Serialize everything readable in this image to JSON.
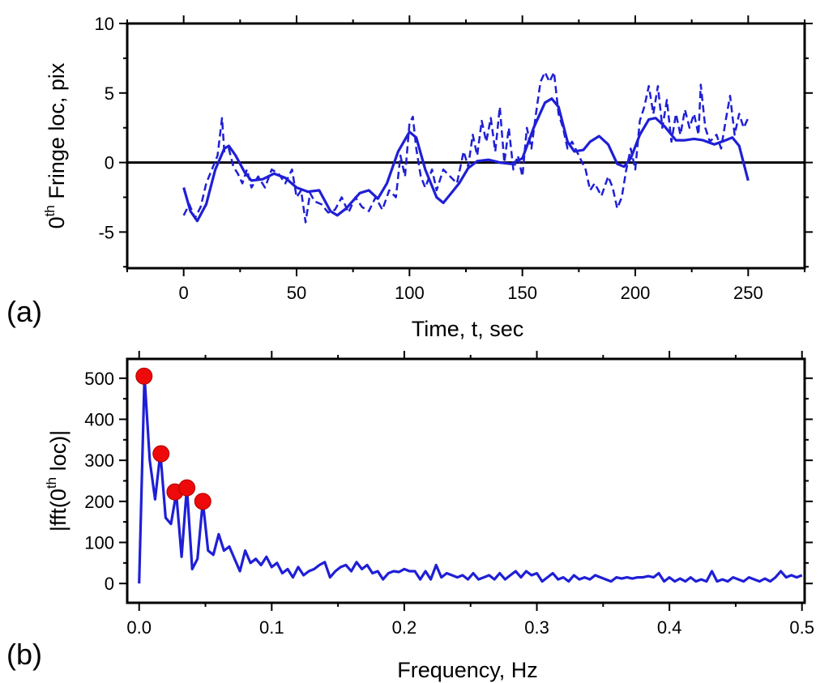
{
  "chart_data": [
    {
      "type": "line",
      "panel_label": "(a)",
      "xlabel": "Time, t, sec",
      "ylabel": [
        "0",
        "th",
        " Fringe loc, pix"
      ],
      "xlim": [
        -25,
        275
      ],
      "xticks": [
        0,
        50,
        100,
        150,
        200,
        250
      ],
      "ylim": [
        -7.6,
        10
      ],
      "yticks": [
        -5,
        0,
        5,
        10
      ],
      "hlines": [
        0
      ],
      "hline_color": "#000000",
      "series": [
        {
          "type": "line",
          "dashed": true,
          "color": "#1f1fd6",
          "x": [
            0,
            2.5,
            5,
            7.5,
            10,
            12.5,
            15,
            17,
            18,
            20,
            22,
            24,
            26,
            28,
            30,
            33,
            36,
            39,
            42,
            45,
            48,
            50,
            52,
            54,
            56,
            58,
            61,
            64,
            67,
            70,
            73,
            76,
            79,
            82,
            85,
            88,
            91,
            94,
            96,
            98,
            100,
            101.5,
            103,
            105,
            107,
            110,
            112,
            115,
            118,
            121,
            124,
            126,
            128,
            130,
            132,
            134,
            136,
            138,
            140,
            142,
            144,
            146,
            148,
            150,
            152,
            154,
            156,
            158,
            160,
            162,
            164,
            166,
            168,
            170,
            172,
            175,
            178,
            180,
            182,
            185,
            188,
            190,
            192,
            194,
            196,
            198,
            200,
            202,
            204,
            206,
            208,
            210,
            212,
            214,
            216,
            218,
            220,
            222,
            224,
            226,
            228,
            229,
            231,
            233,
            236,
            238,
            240,
            242,
            244,
            246,
            248,
            250
          ],
          "values": [
            -3.8,
            -3.0,
            -4.0,
            -3.2,
            -1.5,
            -0.5,
            0.5,
            3.2,
            0.8,
            1.0,
            -0.3,
            -0.8,
            -1.5,
            -0.5,
            -1.8,
            -1.0,
            -1.8,
            -0.5,
            -0.8,
            -1.5,
            -0.5,
            -2.5,
            -2.0,
            -4.3,
            -2.2,
            -2.8,
            -3.0,
            -3.6,
            -3.4,
            -2.5,
            -3.6,
            -2.5,
            -3.2,
            -3.5,
            -2.5,
            -3.4,
            -2.0,
            -2.5,
            0.5,
            -1.0,
            2.8,
            3.3,
            1.0,
            -1.0,
            -1.8,
            -0.5,
            -2.0,
            -0.5,
            -1.0,
            -1.5,
            0.8,
            -0.3,
            2.0,
            0.5,
            3.0,
            1.5,
            3.2,
            0.8,
            4.0,
            0,
            2.5,
            -0.5,
            0.5,
            -1.0,
            2.5,
            1.0,
            3.5,
            5.8,
            6.5,
            5.8,
            6.5,
            3.5,
            2.5,
            1.0,
            1.5,
            0.5,
            -0.5,
            -2.0,
            -1.5,
            -2.4,
            -1.0,
            -1.8,
            -3.3,
            -2.5,
            -0.5,
            1.0,
            -0.5,
            3.0,
            4.0,
            5.5,
            3.5,
            5.5,
            2.5,
            4.5,
            1.5,
            3.5,
            2.0,
            3.8,
            2.5,
            3.5,
            2.0,
            5.6,
            2.5,
            1.5,
            2.0,
            1.0,
            3.0,
            4.8,
            2.0,
            3.5,
            2.5,
            3.2
          ]
        },
        {
          "type": "line",
          "dashed": false,
          "color": "#1f1fd6",
          "x": [
            0,
            3,
            6,
            10,
            14,
            18,
            20,
            23,
            27,
            30,
            35,
            40,
            45,
            50,
            55,
            60,
            65,
            68,
            72,
            78,
            82,
            86,
            90,
            95,
            100,
            103,
            107,
            112,
            115,
            118,
            122,
            126,
            130,
            135,
            140,
            145,
            150,
            155,
            160,
            163,
            166,
            170,
            173,
            177,
            180,
            184,
            188,
            192,
            195,
            198,
            202,
            206,
            209,
            213,
            218,
            222,
            226,
            230,
            235,
            240,
            243,
            246,
            250
          ],
          "values": [
            -1.8,
            -3.5,
            -4.2,
            -3.0,
            -0.5,
            1.0,
            1.2,
            0.5,
            -0.7,
            -1.3,
            -1.2,
            -0.8,
            -1.1,
            -1.8,
            -2.1,
            -2.0,
            -3.5,
            -3.8,
            -3.3,
            -2.2,
            -2.0,
            -2.6,
            -1.5,
            0.8,
            2.2,
            1.8,
            -0.5,
            -2.5,
            -2.9,
            -2.3,
            -1.5,
            -0.4,
            0.1,
            0.2,
            0,
            -0.1,
            0.3,
            2.5,
            4.3,
            4.6,
            4.0,
            1.5,
            0.8,
            0.9,
            1.5,
            1.9,
            1.3,
            -0.1,
            -0.3,
            0.3,
            2.0,
            3.1,
            3.2,
            2.6,
            1.6,
            1.6,
            1.7,
            1.6,
            1.3,
            1.6,
            1.8,
            1.2,
            -1.3
          ]
        }
      ]
    },
    {
      "type": "line",
      "panel_label": "(b)",
      "xlabel": "Frequency, Hz",
      "ylabel": [
        "|fft(0",
        "th",
        " loc)|"
      ],
      "xlim": [
        -0.009,
        0.502
      ],
      "xticks": [
        {
          "value": 0,
          "label": "0.0"
        },
        0.1,
        0.2,
        0.3,
        0.4,
        0.5
      ],
      "ylim": [
        -47,
        547
      ],
      "yticks": [
        0,
        100,
        200,
        300,
        400,
        500
      ],
      "series": [
        {
          "type": "line",
          "dashed": false,
          "color": "#1f1fd6",
          "x": [
            0,
            0.004,
            0.008,
            0.012,
            0.016,
            0.02,
            0.024,
            0.028,
            0.032,
            0.036,
            0.04,
            0.044,
            0.048,
            0.052,
            0.056,
            0.06,
            0.064,
            0.068,
            0.072,
            0.076,
            0.08,
            0.084,
            0.088,
            0.092,
            0.096,
            0.1,
            0.104,
            0.108,
            0.112,
            0.116,
            0.12,
            0.124,
            0.128,
            0.132,
            0.136,
            0.14,
            0.144,
            0.148,
            0.152,
            0.156,
            0.16,
            0.164,
            0.168,
            0.172,
            0.176,
            0.18,
            0.184,
            0.188,
            0.192,
            0.196,
            0.2,
            0.204,
            0.208,
            0.212,
            0.216,
            0.22,
            0.224,
            0.228,
            0.232,
            0.236,
            0.24,
            0.244,
            0.248,
            0.252,
            0.256,
            0.26,
            0.264,
            0.268,
            0.272,
            0.276,
            0.28,
            0.284,
            0.288,
            0.292,
            0.296,
            0.3,
            0.304,
            0.308,
            0.312,
            0.316,
            0.32,
            0.324,
            0.328,
            0.332,
            0.336,
            0.34,
            0.344,
            0.348,
            0.352,
            0.356,
            0.36,
            0.364,
            0.368,
            0.372,
            0.376,
            0.38,
            0.384,
            0.388,
            0.392,
            0.396,
            0.4,
            0.404,
            0.408,
            0.412,
            0.416,
            0.42,
            0.424,
            0.428,
            0.432,
            0.436,
            0.44,
            0.444,
            0.448,
            0.452,
            0.456,
            0.46,
            0.464,
            0.468,
            0.472,
            0.476,
            0.48,
            0.484,
            0.488,
            0.492,
            0.496,
            0.5
          ],
          "values": [
            0,
            505,
            300,
            205,
            318,
            160,
            145,
            220,
            65,
            235,
            35,
            60,
            200,
            80,
            70,
            120,
            80,
            90,
            60,
            30,
            80,
            50,
            60,
            45,
            65,
            40,
            50,
            25,
            35,
            15,
            40,
            20,
            30,
            35,
            45,
            52,
            15,
            30,
            40,
            45,
            30,
            52,
            35,
            45,
            25,
            30,
            10,
            25,
            30,
            28,
            35,
            30,
            30,
            10,
            30,
            10,
            45,
            15,
            25,
            20,
            15,
            20,
            10,
            25,
            10,
            15,
            20,
            10,
            25,
            10,
            20,
            30,
            15,
            30,
            20,
            25,
            5,
            15,
            25,
            10,
            15,
            5,
            20,
            10,
            15,
            10,
            20,
            15,
            10,
            5,
            15,
            12,
            15,
            12,
            15,
            15,
            18,
            15,
            25,
            5,
            15,
            5,
            12,
            5,
            15,
            5,
            10,
            5,
            30,
            5,
            10,
            5,
            15,
            10,
            5,
            15,
            10,
            5,
            12,
            5,
            15,
            30,
            15,
            20,
            15,
            20
          ]
        },
        {
          "type": "scatter",
          "color": "#ee0a0a",
          "x": [
            0.0037,
            0.0165,
            0.027,
            0.036,
            0.048
          ],
          "values": [
            505,
            316,
            223,
            233,
            200
          ]
        }
      ]
    }
  ]
}
